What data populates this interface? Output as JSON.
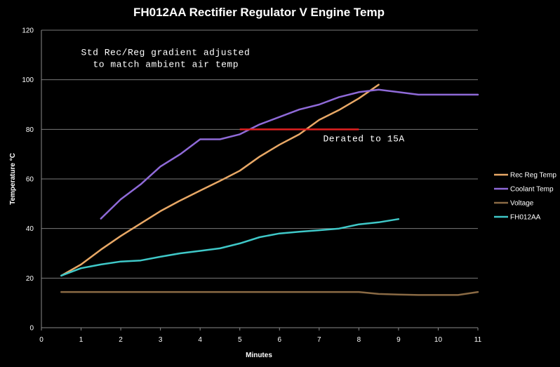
{
  "chart_data": {
    "type": "line",
    "title": "FH012AA  Rectifier Regulator V Engine Temp",
    "xlabel": "Minutes",
    "ylabel": "Temperature °C",
    "xlim": [
      0,
      11
    ],
    "ylim": [
      0,
      120
    ],
    "xticks": [
      "0",
      "1",
      "2",
      "3",
      "4",
      "5",
      "6",
      "7",
      "8",
      "9",
      "10",
      "11"
    ],
    "yticks": [
      "0",
      "20",
      "40",
      "60",
      "80",
      "100",
      "120"
    ],
    "grid": "horizontal",
    "legend_position": "right",
    "series": [
      {
        "name": "Rec Reg Temp",
        "color": "#e8a866",
        "points": [
          [
            0.5,
            21
          ],
          [
            1,
            25.5
          ],
          [
            1.5,
            31.5
          ],
          [
            2,
            37
          ],
          [
            2.5,
            42
          ],
          [
            3,
            47
          ],
          [
            3.5,
            51.3
          ],
          [
            4,
            55.3
          ],
          [
            4.5,
            59.2
          ],
          [
            5,
            63.3
          ],
          [
            5.5,
            69
          ],
          [
            6,
            73.8
          ],
          [
            6.5,
            78
          ],
          [
            7,
            83.8
          ],
          [
            7.5,
            87.8
          ],
          [
            8,
            92.5
          ],
          [
            8.5,
            98
          ]
        ]
      },
      {
        "name": "Coolant Temp",
        "color": "#8f6ad8",
        "points": [
          [
            1.5,
            44
          ],
          [
            2,
            51.8
          ],
          [
            2.5,
            57.8
          ],
          [
            3,
            65
          ],
          [
            3.5,
            70
          ],
          [
            4,
            76
          ],
          [
            4.5,
            76
          ],
          [
            5,
            78
          ],
          [
            5.5,
            82
          ],
          [
            6,
            85
          ],
          [
            6.5,
            88
          ],
          [
            7,
            90
          ],
          [
            7.5,
            93
          ],
          [
            8,
            95
          ],
          [
            8.5,
            96
          ],
          [
            9,
            95
          ],
          [
            9.5,
            94
          ],
          [
            10,
            94
          ],
          [
            10.5,
            94
          ],
          [
            11,
            94
          ]
        ]
      },
      {
        "name": "Voltage",
        "color": "#8a6a44",
        "points": [
          [
            0.5,
            14.4
          ],
          [
            1,
            14.4
          ],
          [
            2,
            14.4
          ],
          [
            3,
            14.4
          ],
          [
            4,
            14.4
          ],
          [
            5,
            14.4
          ],
          [
            6,
            14.4
          ],
          [
            7,
            14.4
          ],
          [
            8,
            14.4
          ],
          [
            8.5,
            13.6
          ],
          [
            9,
            13.4
          ],
          [
            9.5,
            13.2
          ],
          [
            10,
            13.2
          ],
          [
            10.5,
            13.2
          ],
          [
            11,
            14.4
          ]
        ]
      },
      {
        "name": "FH012AA",
        "color": "#3fc8c8",
        "points": [
          [
            0.5,
            21
          ],
          [
            1,
            24
          ],
          [
            1.5,
            25.5
          ],
          [
            2,
            26.7
          ],
          [
            2.5,
            27.1
          ],
          [
            3,
            28.6
          ],
          [
            3.5,
            30
          ],
          [
            4,
            31
          ],
          [
            4.5,
            32
          ],
          [
            5,
            34
          ],
          [
            5.5,
            36.5
          ],
          [
            6,
            38
          ],
          [
            6.5,
            38.7
          ],
          [
            7,
            39.3
          ],
          [
            7.5,
            40
          ],
          [
            8,
            41.7
          ],
          [
            8.5,
            42.5
          ],
          [
            9,
            43.8
          ]
        ]
      }
    ],
    "reference_line": {
      "color": "#e02020",
      "y": 80,
      "x_start": 5,
      "x_end": 8
    },
    "annotations": [
      {
        "text": "Std Rec/Reg gradient adjusted",
        "x": 1,
        "y": 110
      },
      {
        "text": "to match ambient air temp",
        "x": 1.3,
        "y": 105.2
      },
      {
        "text": "Derated to 15A",
        "x": 7.1,
        "y": 75.2
      }
    ]
  }
}
